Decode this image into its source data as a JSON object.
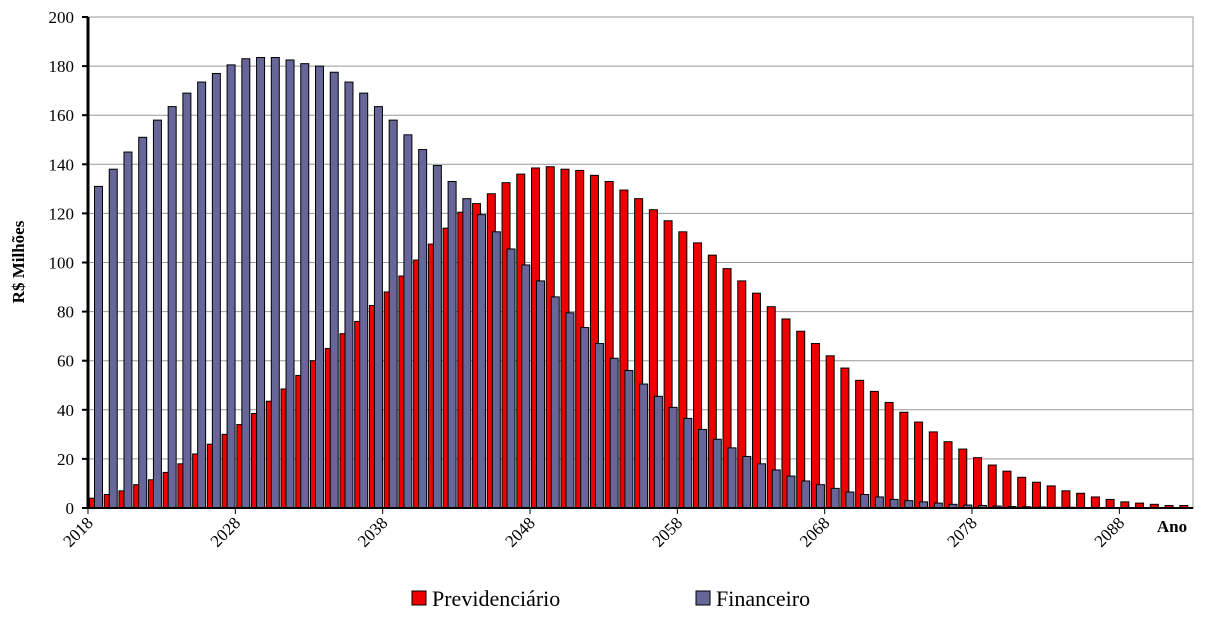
{
  "chart_data": {
    "type": "bar",
    "x_label": "Ano",
    "y_label": "R$ Milhões",
    "categories": [
      "2018",
      null,
      null,
      null,
      null,
      null,
      null,
      null,
      null,
      null,
      "2028",
      null,
      null,
      null,
      null,
      null,
      null,
      null,
      null,
      null,
      "2038",
      null,
      null,
      null,
      null,
      null,
      null,
      null,
      null,
      null,
      "2048",
      null,
      null,
      null,
      null,
      null,
      null,
      null,
      null,
      null,
      "2058",
      null,
      null,
      null,
      null,
      null,
      null,
      null,
      null,
      null,
      "2068",
      null,
      null,
      null,
      null,
      null,
      null,
      null,
      null,
      null,
      "2078",
      null,
      null,
      null,
      null,
      null,
      null,
      null,
      null,
      null,
      "2088",
      null,
      null,
      null,
      null
    ],
    "series": [
      {
        "name": "Previdenciário",
        "color": "#ee0000",
        "values": [
          4,
          5.5,
          7,
          9.5,
          11.5,
          14.5,
          18,
          22,
          26,
          30,
          34,
          38.5,
          43.5,
          48.5,
          54,
          60,
          65,
          71,
          76,
          82.5,
          88,
          94.5,
          101,
          107.5,
          114,
          120.5,
          124,
          128,
          132.5,
          136,
          138.5,
          139,
          138,
          137.5,
          135.5,
          133,
          129.5,
          126,
          121.5,
          117,
          112.5,
          108,
          103,
          97.5,
          92.5,
          87.5,
          82,
          77,
          72,
          67,
          62,
          57,
          52,
          47.5,
          43,
          39,
          35,
          31,
          27,
          24,
          20.5,
          17.5,
          15,
          12.5,
          10.5,
          9,
          7,
          6,
          4.5,
          3.5,
          2.5,
          2,
          1.5,
          1,
          1
        ]
      },
      {
        "name": "Financeiro",
        "color": "#666699",
        "values": [
          131,
          138,
          145,
          151,
          158,
          163.5,
          169,
          173.5,
          177,
          180.5,
          183,
          183.5,
          183.5,
          182.5,
          181,
          180,
          177.5,
          173.5,
          169,
          163.5,
          158,
          152,
          146,
          139.5,
          133,
          126,
          119.5,
          112.5,
          105.5,
          99,
          92.5,
          86,
          79.5,
          73.5,
          67,
          61,
          56,
          50.5,
          45.5,
          41,
          36.5,
          32,
          28,
          24.5,
          21,
          18,
          15.5,
          13,
          11,
          9.5,
          8,
          6.5,
          5.5,
          4.5,
          3.5,
          3,
          2.5,
          2,
          1.5,
          1.2,
          1,
          0.8,
          0.6,
          0.5,
          0.4,
          0.3,
          0.3,
          0.2,
          0.2,
          0.1,
          0.1,
          0.1,
          0.1,
          0.1,
          0.1
        ]
      }
    ],
    "ylim": [
      0,
      200
    ],
    "yticks": [
      0,
      20,
      40,
      60,
      80,
      100,
      120,
      140,
      160,
      180,
      200
    ],
    "grid": true,
    "legend": "bottom"
  }
}
